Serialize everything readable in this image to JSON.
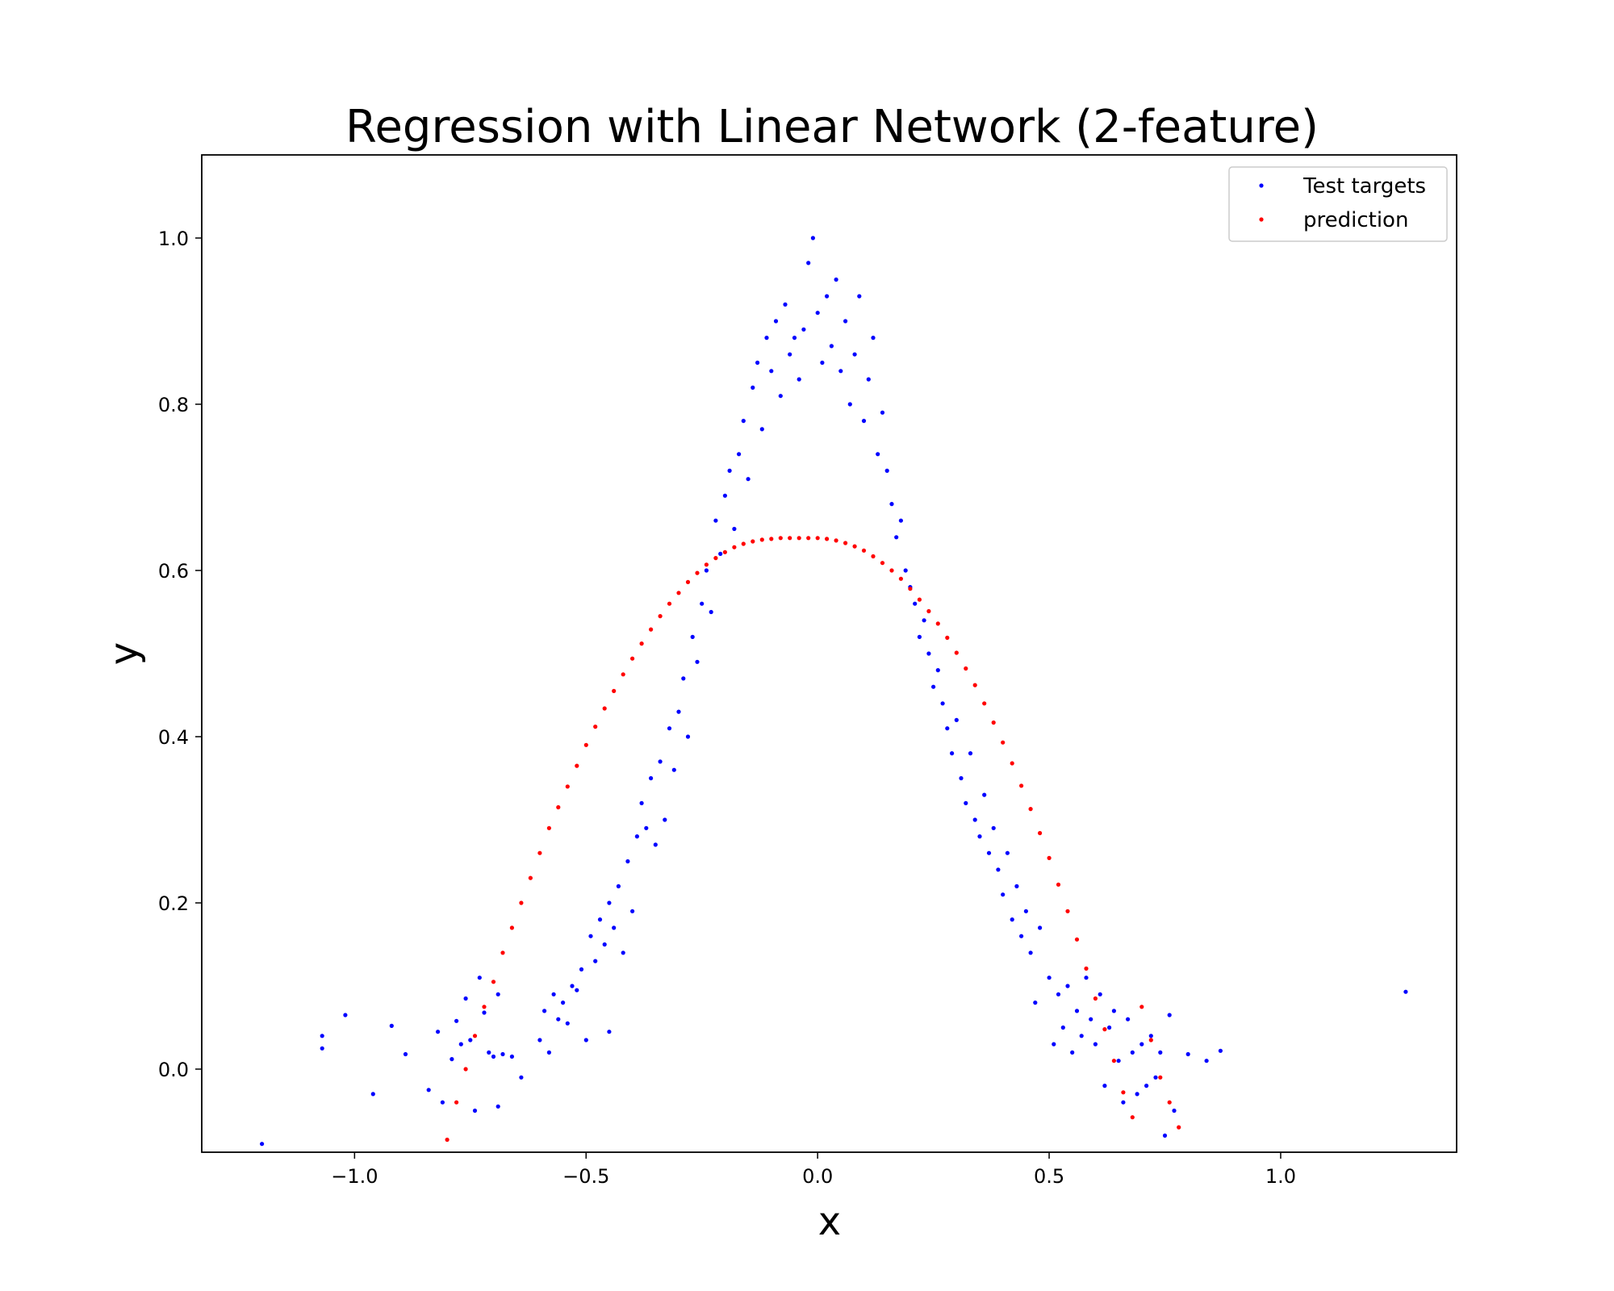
{
  "chart_data": {
    "type": "scatter",
    "title": "Regression with Linear Network (2-feature)",
    "xlabel": "x",
    "ylabel": "y",
    "xlim": [
      -1.33,
      1.38
    ],
    "ylim": [
      -0.1,
      1.1
    ],
    "x_ticks": [
      -1.0,
      -0.5,
      0.0,
      0.5,
      1.0
    ],
    "x_tick_labels": [
      "−1.0",
      "−0.5",
      "0.0",
      "0.5",
      "1.0"
    ],
    "y_ticks": [
      0.0,
      0.2,
      0.4,
      0.6,
      0.8,
      1.0
    ],
    "y_tick_labels": [
      "0.0",
      "0.2",
      "0.4",
      "0.6",
      "0.8",
      "1.0"
    ],
    "grid": false,
    "legend_position": "top-right",
    "series": [
      {
        "name": "Test targets",
        "color": "#0000ff",
        "points": [
          [
            -1.2,
            -0.09
          ],
          [
            -1.07,
            0.04
          ],
          [
            -1.07,
            0.025
          ],
          [
            -1.02,
            0.065
          ],
          [
            -0.96,
            -0.03
          ],
          [
            -0.92,
            0.052
          ],
          [
            -0.89,
            0.018
          ],
          [
            -0.84,
            -0.025
          ],
          [
            -0.82,
            0.045
          ],
          [
            -0.81,
            -0.04
          ],
          [
            -0.79,
            0.012
          ],
          [
            -0.78,
            0.058
          ],
          [
            -0.77,
            0.03
          ],
          [
            -0.76,
            0.085
          ],
          [
            -0.75,
            0.035
          ],
          [
            -0.74,
            -0.05
          ],
          [
            -0.73,
            0.11
          ],
          [
            -0.72,
            0.068
          ],
          [
            -0.71,
            0.02
          ],
          [
            -0.7,
            0.015
          ],
          [
            -0.69,
            0.09
          ],
          [
            -0.69,
            -0.045
          ],
          [
            -0.68,
            0.018
          ],
          [
            -0.66,
            0.015
          ],
          [
            -0.64,
            -0.01
          ],
          [
            -0.6,
            0.035
          ],
          [
            -0.59,
            0.07
          ],
          [
            -0.58,
            0.02
          ],
          [
            -0.57,
            0.09
          ],
          [
            -0.56,
            0.06
          ],
          [
            -0.55,
            0.08
          ],
          [
            -0.54,
            0.055
          ],
          [
            -0.53,
            0.1
          ],
          [
            -0.52,
            0.095
          ],
          [
            -0.51,
            0.12
          ],
          [
            -0.5,
            0.035
          ],
          [
            -0.49,
            0.16
          ],
          [
            -0.48,
            0.13
          ],
          [
            -0.47,
            0.18
          ],
          [
            -0.46,
            0.15
          ],
          [
            -0.45,
            0.2
          ],
          [
            -0.45,
            0.045
          ],
          [
            -0.44,
            0.17
          ],
          [
            -0.43,
            0.22
          ],
          [
            -0.42,
            0.14
          ],
          [
            -0.41,
            0.25
          ],
          [
            -0.4,
            0.19
          ],
          [
            -0.39,
            0.28
          ],
          [
            -0.38,
            0.32
          ],
          [
            -0.37,
            0.29
          ],
          [
            -0.36,
            0.35
          ],
          [
            -0.35,
            0.27
          ],
          [
            -0.34,
            0.37
          ],
          [
            -0.33,
            0.3
          ],
          [
            -0.32,
            0.41
          ],
          [
            -0.31,
            0.36
          ],
          [
            -0.3,
            0.43
          ],
          [
            -0.29,
            0.47
          ],
          [
            -0.28,
            0.4
          ],
          [
            -0.27,
            0.52
          ],
          [
            -0.26,
            0.49
          ],
          [
            -0.25,
            0.56
          ],
          [
            -0.24,
            0.6
          ],
          [
            -0.23,
            0.55
          ],
          [
            -0.22,
            0.66
          ],
          [
            -0.21,
            0.62
          ],
          [
            -0.2,
            0.69
          ],
          [
            -0.19,
            0.72
          ],
          [
            -0.18,
            0.65
          ],
          [
            -0.17,
            0.74
          ],
          [
            -0.16,
            0.78
          ],
          [
            -0.15,
            0.71
          ],
          [
            -0.14,
            0.82
          ],
          [
            -0.13,
            0.85
          ],
          [
            -0.12,
            0.77
          ],
          [
            -0.11,
            0.88
          ],
          [
            -0.1,
            0.84
          ],
          [
            -0.09,
            0.9
          ],
          [
            -0.08,
            0.81
          ],
          [
            -0.07,
            0.92
          ],
          [
            -0.06,
            0.86
          ],
          [
            -0.05,
            0.88
          ],
          [
            -0.04,
            0.83
          ],
          [
            -0.03,
            0.89
          ],
          [
            -0.02,
            0.97
          ],
          [
            -0.01,
            1.0
          ],
          [
            0.0,
            0.91
          ],
          [
            0.01,
            0.85
          ],
          [
            0.02,
            0.93
          ],
          [
            0.03,
            0.87
          ],
          [
            0.04,
            0.95
          ],
          [
            0.05,
            0.84
          ],
          [
            0.06,
            0.9
          ],
          [
            0.07,
            0.8
          ],
          [
            0.08,
            0.86
          ],
          [
            0.09,
            0.93
          ],
          [
            0.1,
            0.78
          ],
          [
            0.11,
            0.83
          ],
          [
            0.12,
            0.88
          ],
          [
            0.13,
            0.74
          ],
          [
            0.14,
            0.79
          ],
          [
            0.15,
            0.72
          ],
          [
            0.16,
            0.68
          ],
          [
            0.17,
            0.64
          ],
          [
            0.18,
            0.66
          ],
          [
            0.19,
            0.6
          ],
          [
            0.2,
            0.58
          ],
          [
            0.21,
            0.56
          ],
          [
            0.22,
            0.52
          ],
          [
            0.23,
            0.54
          ],
          [
            0.24,
            0.5
          ],
          [
            0.25,
            0.46
          ],
          [
            0.26,
            0.48
          ],
          [
            0.27,
            0.44
          ],
          [
            0.28,
            0.41
          ],
          [
            0.29,
            0.38
          ],
          [
            0.3,
            0.42
          ],
          [
            0.31,
            0.35
          ],
          [
            0.32,
            0.32
          ],
          [
            0.33,
            0.38
          ],
          [
            0.34,
            0.3
          ],
          [
            0.35,
            0.28
          ],
          [
            0.36,
            0.33
          ],
          [
            0.37,
            0.26
          ],
          [
            0.38,
            0.29
          ],
          [
            0.39,
            0.24
          ],
          [
            0.4,
            0.21
          ],
          [
            0.41,
            0.26
          ],
          [
            0.42,
            0.18
          ],
          [
            0.43,
            0.22
          ],
          [
            0.44,
            0.16
          ],
          [
            0.45,
            0.19
          ],
          [
            0.46,
            0.14
          ],
          [
            0.47,
            0.08
          ],
          [
            0.48,
            0.17
          ],
          [
            0.5,
            0.11
          ],
          [
            0.51,
            0.03
          ],
          [
            0.52,
            0.09
          ],
          [
            0.53,
            0.05
          ],
          [
            0.54,
            0.1
          ],
          [
            0.55,
            0.02
          ],
          [
            0.56,
            0.07
          ],
          [
            0.57,
            0.04
          ],
          [
            0.58,
            0.11
          ],
          [
            0.59,
            0.06
          ],
          [
            0.6,
            0.03
          ],
          [
            0.61,
            0.09
          ],
          [
            0.62,
            -0.02
          ],
          [
            0.63,
            0.05
          ],
          [
            0.64,
            0.07
          ],
          [
            0.65,
            0.01
          ],
          [
            0.66,
            -0.04
          ],
          [
            0.67,
            0.06
          ],
          [
            0.68,
            0.02
          ],
          [
            0.69,
            -0.03
          ],
          [
            0.7,
            0.03
          ],
          [
            0.71,
            -0.02
          ],
          [
            0.72,
            0.04
          ],
          [
            0.73,
            -0.01
          ],
          [
            0.74,
            0.02
          ],
          [
            0.75,
            -0.08
          ],
          [
            0.76,
            0.065
          ],
          [
            0.77,
            -0.05
          ],
          [
            0.8,
            0.018
          ],
          [
            0.84,
            0.01
          ],
          [
            0.87,
            0.022
          ],
          [
            1.27,
            0.093
          ]
        ]
      },
      {
        "name": "prediction",
        "color": "#ff0000",
        "points": [
          [
            -0.8,
            -0.085
          ],
          [
            -0.78,
            -0.04
          ],
          [
            -0.76,
            0.0
          ],
          [
            -0.74,
            0.04
          ],
          [
            -0.72,
            0.075
          ],
          [
            -0.7,
            0.105
          ],
          [
            -0.68,
            0.14
          ],
          [
            -0.66,
            0.17
          ],
          [
            -0.64,
            0.2
          ],
          [
            -0.62,
            0.23
          ],
          [
            -0.6,
            0.26
          ],
          [
            -0.58,
            0.29
          ],
          [
            -0.56,
            0.315
          ],
          [
            -0.54,
            0.34
          ],
          [
            -0.52,
            0.365
          ],
          [
            -0.5,
            0.39
          ],
          [
            -0.48,
            0.412
          ],
          [
            -0.46,
            0.434
          ],
          [
            -0.44,
            0.455
          ],
          [
            -0.42,
            0.475
          ],
          [
            -0.4,
            0.494
          ],
          [
            -0.38,
            0.512
          ],
          [
            -0.36,
            0.529
          ],
          [
            -0.34,
            0.545
          ],
          [
            -0.32,
            0.56
          ],
          [
            -0.3,
            0.573
          ],
          [
            -0.28,
            0.586
          ],
          [
            -0.26,
            0.597
          ],
          [
            -0.24,
            0.607
          ],
          [
            -0.22,
            0.615
          ],
          [
            -0.2,
            0.622
          ],
          [
            -0.18,
            0.628
          ],
          [
            -0.16,
            0.632
          ],
          [
            -0.14,
            0.635
          ],
          [
            -0.12,
            0.637
          ],
          [
            -0.1,
            0.638
          ],
          [
            -0.08,
            0.639
          ],
          [
            -0.06,
            0.639
          ],
          [
            -0.04,
            0.639
          ],
          [
            -0.02,
            0.639
          ],
          [
            0.0,
            0.639
          ],
          [
            0.02,
            0.638
          ],
          [
            0.04,
            0.636
          ],
          [
            0.06,
            0.633
          ],
          [
            0.08,
            0.629
          ],
          [
            0.1,
            0.624
          ],
          [
            0.12,
            0.617
          ],
          [
            0.14,
            0.609
          ],
          [
            0.16,
            0.6
          ],
          [
            0.18,
            0.59
          ],
          [
            0.2,
            0.578
          ],
          [
            0.22,
            0.565
          ],
          [
            0.24,
            0.551
          ],
          [
            0.26,
            0.536
          ],
          [
            0.28,
            0.519
          ],
          [
            0.3,
            0.501
          ],
          [
            0.32,
            0.482
          ],
          [
            0.34,
            0.462
          ],
          [
            0.36,
            0.44
          ],
          [
            0.38,
            0.417
          ],
          [
            0.4,
            0.393
          ],
          [
            0.42,
            0.368
          ],
          [
            0.44,
            0.341
          ],
          [
            0.46,
            0.313
          ],
          [
            0.48,
            0.284
          ],
          [
            0.5,
            0.254
          ],
          [
            0.52,
            0.222
          ],
          [
            0.54,
            0.19
          ],
          [
            0.56,
            0.156
          ],
          [
            0.58,
            0.121
          ],
          [
            0.6,
            0.085
          ],
          [
            0.62,
            0.048
          ],
          [
            0.64,
            0.01
          ],
          [
            0.66,
            -0.028
          ],
          [
            0.68,
            -0.058
          ],
          [
            0.7,
            0.075
          ],
          [
            0.72,
            0.035
          ],
          [
            0.74,
            -0.01
          ],
          [
            0.76,
            -0.04
          ],
          [
            0.78,
            -0.07
          ]
        ]
      }
    ]
  }
}
